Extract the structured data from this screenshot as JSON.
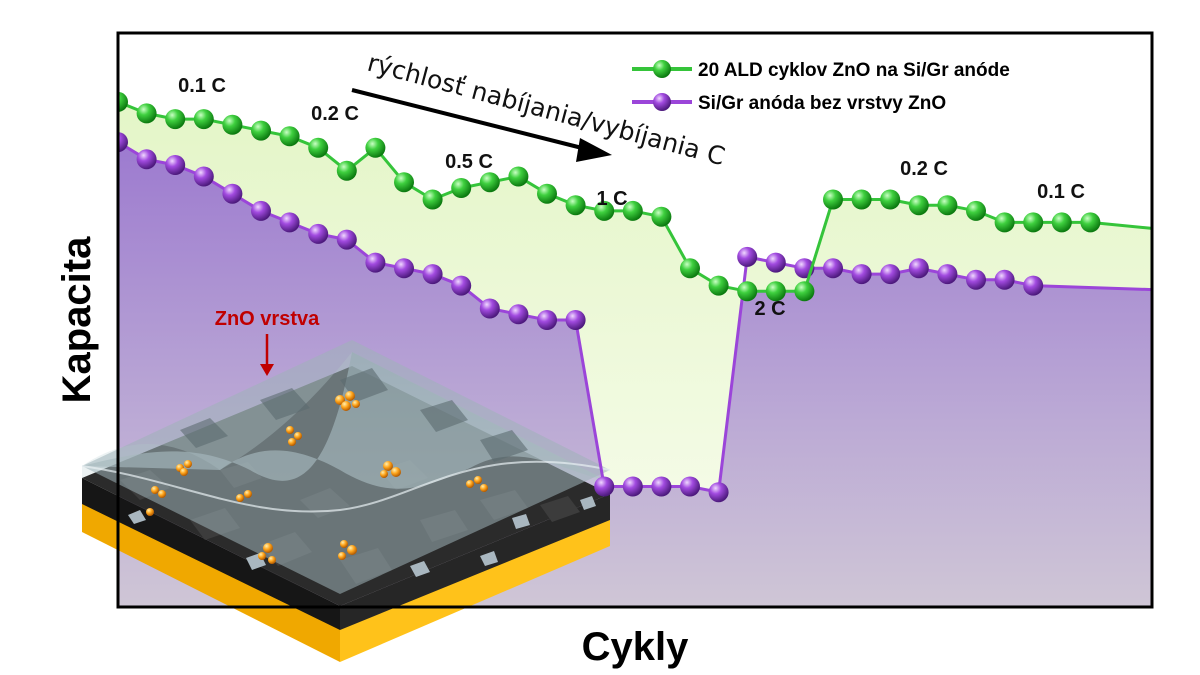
{
  "chart_data": {
    "type": "line",
    "xlabel": "Cykly",
    "ylabel": "Kapacita",
    "ylim": [
      0,
      100
    ],
    "x": [
      1,
      2,
      3,
      4,
      5,
      6,
      7,
      8,
      9,
      10,
      11,
      12,
      13,
      14,
      15,
      16,
      17,
      18,
      19,
      20,
      21,
      22,
      23,
      24,
      25,
      26,
      27,
      28,
      29,
      30,
      31,
      32,
      33,
      34,
      35,
      36,
      37,
      38,
      39,
      40,
      41,
      42,
      43,
      44,
      45,
      46,
      47,
      48,
      49,
      50,
      51,
      52
    ],
    "series": [
      {
        "name": "20 ALD cyklov ZnO na Si/Gr anóde",
        "values": [
          88,
          86,
          85,
          85,
          84,
          83,
          82,
          80,
          76,
          80,
          74,
          71,
          73,
          74,
          75,
          72,
          70,
          69,
          69,
          68,
          59,
          56,
          55,
          55,
          55,
          71,
          71,
          71,
          70,
          70,
          69,
          67,
          67,
          67,
          67,
          null,
          null,
          null,
          null,
          null,
          null,
          null,
          null,
          null,
          null,
          null,
          null,
          null,
          null,
          null,
          null,
          null
        ]
      },
      {
        "name": "Si/Gr anóda bez vrstvy ZnO",
        "values": [
          81,
          78,
          77,
          75,
          72,
          69,
          67,
          65,
          64,
          60,
          59,
          58,
          56,
          52,
          51,
          50,
          50,
          21,
          21,
          21,
          21,
          20,
          61,
          60,
          59,
          59,
          58,
          58,
          59,
          58,
          57,
          57,
          56,
          null,
          null,
          null,
          null,
          null,
          null,
          null,
          null,
          null,
          null,
          null,
          null,
          null,
          null,
          null,
          null,
          null,
          null,
          null
        ]
      }
    ],
    "annotations": {
      "rates": [
        "0.1 C",
        "0.2 C",
        "0.5 C",
        "1 C",
        "2 C",
        "0.2 C",
        "0.1 C"
      ],
      "arrow_label": "rýchlosť nabíjania/vybíjania C",
      "inset_label": "ZnO vrstva"
    },
    "legend_position": "top-right",
    "grid": false,
    "colors": {
      "green_series": "#35c43a",
      "purple_series": "#9b45d9",
      "green_fill": "#eef8dc",
      "purple_fill": "#b8a3d6",
      "inset_label": "#c00000"
    }
  }
}
